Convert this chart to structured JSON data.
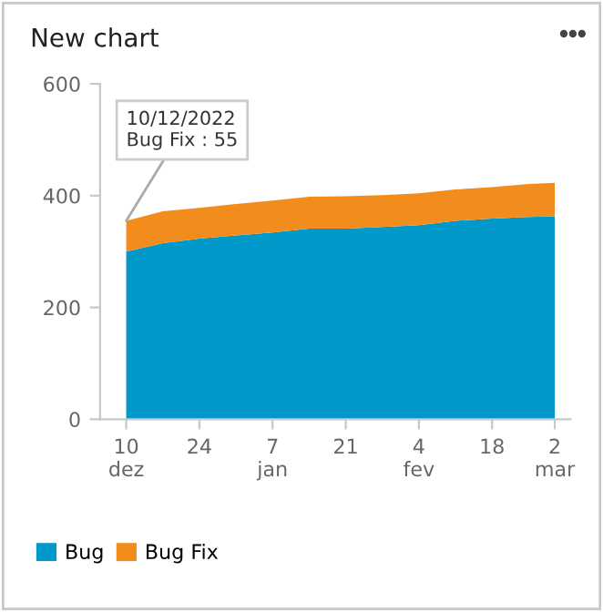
{
  "chart_data": {
    "type": "area",
    "stacked": true,
    "title": "New chart",
    "x": [
      "2022-12-10",
      "2022-12-17",
      "2022-12-24",
      "2022-12-31",
      "2023-01-07",
      "2023-01-14",
      "2023-01-21",
      "2023-01-28",
      "2023-02-04",
      "2023-02-11",
      "2023-02-18",
      "2023-02-25",
      "2023-03-02"
    ],
    "series": [
      {
        "name": "Bug",
        "color": "#0099c9",
        "values": [
          300,
          315,
          323,
          329,
          334,
          341,
          341,
          344,
          347,
          355,
          359,
          362,
          363
        ]
      },
      {
        "name": "Bug Fix",
        "color": "#f28c1c",
        "values": [
          55,
          57,
          55,
          56,
          57,
          57,
          58,
          57,
          57,
          56,
          56,
          59,
          60
        ]
      }
    ],
    "xlim": [
      "2022-12-05",
      "2023-03-05"
    ],
    "xticks": [
      {
        "value": "2022-12-10",
        "label": "10\ndez"
      },
      {
        "value": "2022-12-24",
        "label": "24"
      },
      {
        "value": "2023-01-07",
        "label": "7\njan"
      },
      {
        "value": "2023-01-21",
        "label": "21"
      },
      {
        "value": "2023-02-04",
        "label": "4\nfev"
      },
      {
        "value": "2023-02-18",
        "label": "18"
      },
      {
        "value": "2023-03-02",
        "label": "2\nmar"
      }
    ],
    "ylim": [
      0,
      600
    ],
    "yticks": [
      0,
      200,
      400,
      600
    ],
    "grid": false,
    "legend": "bottom left",
    "annotations": [
      {
        "text": "10/12/2022\nBug Fix : 55",
        "x": "2022-12-10",
        "y": 355
      }
    ]
  }
}
